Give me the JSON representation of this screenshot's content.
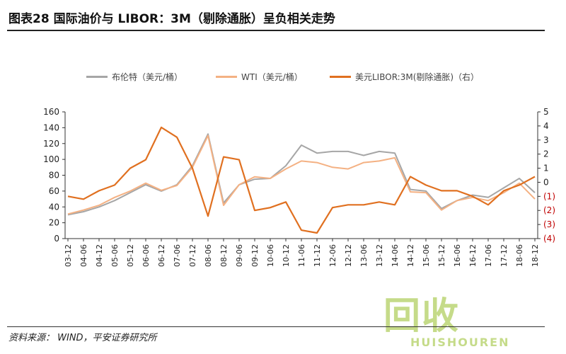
{
  "header": {
    "title": "图表28    国际油价与 LIBOR：3M（剔除通胀）呈负相关走势"
  },
  "footer": {
    "source": "资料来源： WIND，平安证券研究所"
  },
  "watermark": {
    "main": "回收",
    "sub": "HUISHOUREN"
  },
  "chart_data": {
    "type": "line",
    "title": "国际油价与 LIBOR：3M（剔除通胀）呈负相关走势",
    "legend_position": "top",
    "grid": false,
    "y_left": {
      "ticks": [
        "160",
        "140",
        "120",
        "100",
        "80",
        "60",
        "40",
        "20",
        "0"
      ],
      "range": [
        0,
        160
      ]
    },
    "y_right": {
      "ticks": [
        "5",
        "4",
        "3",
        "2",
        "1",
        "0",
        "(1)",
        "(2)",
        "(3)",
        "(4)"
      ],
      "range": [
        -4,
        5
      ]
    },
    "x_ticks": [
      "03-12",
      "04-06",
      "04-12",
      "05-06",
      "05-12",
      "06-06",
      "06-12",
      "07-06",
      "07-12",
      "08-06",
      "08-12",
      "09-06",
      "09-12",
      "10-06",
      "10-12",
      "11-06",
      "11-12",
      "12-06",
      "12-12",
      "13-06",
      "13-12",
      "14-06",
      "14-12",
      "15-06",
      "15-12",
      "16-06",
      "16-12",
      "17-06",
      "17-12",
      "18-06",
      "18-12"
    ],
    "series": [
      {
        "name": "布伦特（美元/桶）",
        "axis": "left",
        "color": "#a6a6a6",
        "values": [
          30,
          34,
          40,
          48,
          58,
          68,
          60,
          68,
          92,
          132,
          45,
          68,
          75,
          76,
          92,
          118,
          108,
          110,
          110,
          105,
          110,
          108,
          62,
          60,
          38,
          48,
          55,
          52,
          64,
          76,
          58
        ]
      },
      {
        "name": "WTI（美元/桶）",
        "axis": "left",
        "color": "#f4b183",
        "values": [
          31,
          36,
          42,
          52,
          60,
          70,
          61,
          67,
          90,
          130,
          42,
          68,
          78,
          76,
          88,
          98,
          96,
          90,
          88,
          96,
          98,
          102,
          59,
          58,
          36,
          48,
          52,
          48,
          58,
          70,
          50
        ]
      },
      {
        "name": "美元LIBOR:3M(剔除通胀)（右）",
        "axis": "right",
        "color": "#e07020",
        "values": [
          -1.0,
          -1.2,
          -0.6,
          -0.2,
          1.0,
          1.6,
          3.9,
          3.2,
          1.0,
          -2.4,
          1.8,
          1.6,
          -2.0,
          -1.8,
          -1.4,
          -3.4,
          -3.6,
          -1.8,
          -1.6,
          -1.6,
          -1.4,
          -1.6,
          0.4,
          -0.2,
          -0.6,
          -0.6,
          -1.0,
          -1.6,
          -0.6,
          -0.2,
          0.4
        ]
      }
    ]
  }
}
